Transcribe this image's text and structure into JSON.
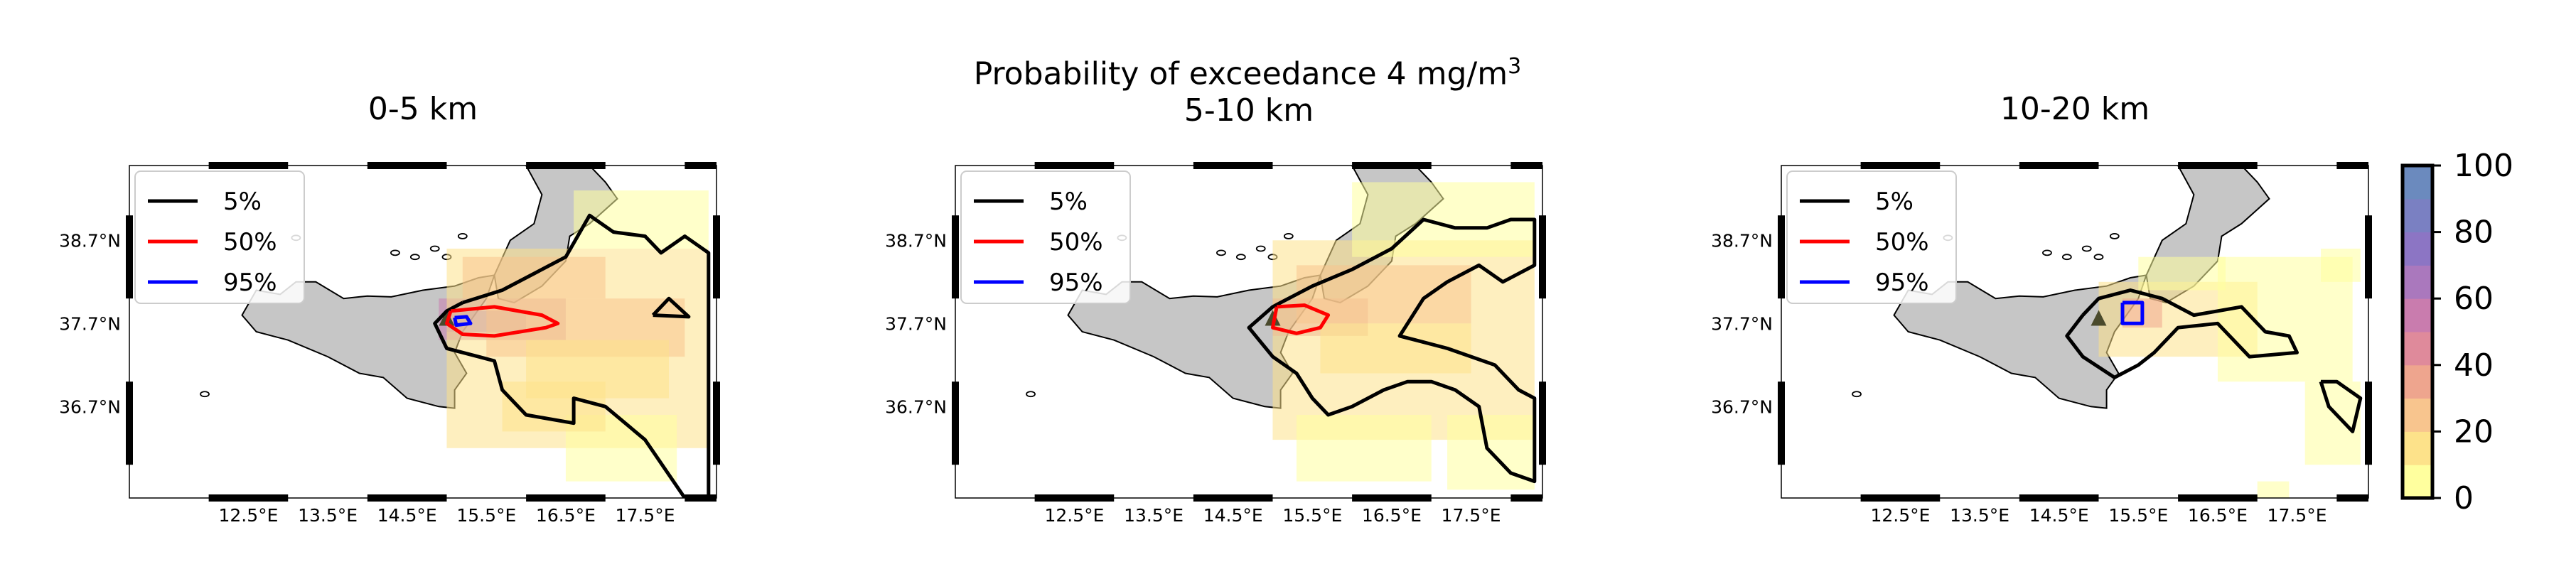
{
  "figure": {
    "title_text": "Probability of exceedance 4 mg/m",
    "title_exponent": "3"
  },
  "colors": {
    "land": "#c6c6c6",
    "contour_5": "#000000",
    "contour_50": "#ff0000",
    "contour_95": "#0000ff",
    "volcano_marker": "#4a4a2c",
    "colormap": [
      "#ffff9e",
      "#fde28a",
      "#f8c58e",
      "#eea58e",
      "#df8a9b",
      "#c97cae",
      "#aa78bd",
      "#8c75c4",
      "#7a80c2",
      "#6b8abe"
    ]
  },
  "legend": {
    "items": [
      {
        "label": "5%",
        "color": "#000000"
      },
      {
        "label": "50%",
        "color": "#ff0000"
      },
      {
        "label": "95%",
        "color": "#0000ff"
      }
    ]
  },
  "colorbar": {
    "ticks": [
      "0",
      "20",
      "40",
      "60",
      "80",
      "100"
    ],
    "range": [
      0,
      100
    ]
  },
  "chart_data": [
    {
      "type": "heatmap",
      "title": "0-5 km",
      "xlabel": "",
      "ylabel": "",
      "xlim": [
        11.0,
        18.4
      ],
      "ylim": [
        35.6,
        39.6
      ],
      "xticks": [
        12.5,
        13.5,
        14.5,
        15.5,
        16.5,
        17.5
      ],
      "xtick_labels": [
        "12.5°E",
        "13.5°E",
        "14.5°E",
        "15.5°E",
        "16.5°E",
        "17.5°E"
      ],
      "yticks": [
        36.7,
        37.7,
        38.7
      ],
      "ytick_labels": [
        "36.7°N",
        "37.7°N",
        "38.7°N"
      ],
      "grid": false,
      "legend_position": "upper-left",
      "value_range": [
        0,
        100
      ],
      "volcano": {
        "lon": 15.0,
        "lat": 37.75
      },
      "contours": [
        {
          "level": "5%",
          "points": [
            [
              15.2,
              37.95
            ],
            [
              15.7,
              38.1
            ],
            [
              16.1,
              38.3
            ],
            [
              16.5,
              38.5
            ],
            [
              16.8,
              39.0
            ],
            [
              17.1,
              38.8
            ],
            [
              17.5,
              38.75
            ],
            [
              17.7,
              38.55
            ],
            [
              18.0,
              38.75
            ],
            [
              18.3,
              38.55
            ],
            [
              18.3,
              35.6
            ],
            [
              18.0,
              35.6
            ],
            [
              17.5,
              36.3
            ],
            [
              17.0,
              36.7
            ],
            [
              16.6,
              36.8
            ],
            [
              16.6,
              36.5
            ],
            [
              16.0,
              36.6
            ],
            [
              15.7,
              36.9
            ],
            [
              15.6,
              37.25
            ],
            [
              15.4,
              37.3
            ],
            [
              15.0,
              37.4
            ],
            [
              14.85,
              37.7
            ],
            [
              15.0,
              37.85
            ],
            [
              15.2,
              37.95
            ]
          ]
        },
        {
          "level": "5%",
          "points": [
            [
              17.6,
              37.8
            ],
            [
              17.8,
              38.0
            ],
            [
              18.05,
              37.78
            ],
            [
              17.6,
              37.8
            ]
          ]
        },
        {
          "level": "50%",
          "points": [
            [
              15.05,
              37.85
            ],
            [
              15.6,
              37.9
            ],
            [
              16.2,
              37.8
            ],
            [
              16.4,
              37.7
            ],
            [
              16.25,
              37.65
            ],
            [
              15.6,
              37.55
            ],
            [
              15.2,
              37.57
            ],
            [
              15.0,
              37.7
            ],
            [
              15.05,
              37.85
            ]
          ]
        },
        {
          "level": "95%",
          "points": [
            [
              15.1,
              37.77
            ],
            [
              15.25,
              37.78
            ],
            [
              15.3,
              37.7
            ],
            [
              15.12,
              37.68
            ],
            [
              15.1,
              37.77
            ]
          ]
        }
      ],
      "cells": [
        {
          "lon": [
            14.9,
            16.5
          ],
          "lat": [
            37.5,
            38.0
          ],
          "value": 50
        },
        {
          "lon": [
            15.0,
            16.0
          ],
          "lat": [
            37.6,
            37.85
          ],
          "value": 60
        },
        {
          "lon": [
            15.0,
            18.3
          ],
          "lat": [
            36.2,
            38.6
          ],
          "value": 10
        },
        {
          "lon": [
            16.6,
            18.3
          ],
          "lat": [
            38.6,
            39.3
          ],
          "value": 5
        },
        {
          "lon": [
            15.2,
            17.0
          ],
          "lat": [
            38.0,
            38.5
          ],
          "value": 22
        },
        {
          "lon": [
            15.5,
            18.0
          ],
          "lat": [
            37.3,
            38.0
          ],
          "value": 25
        },
        {
          "lon": [
            16.0,
            17.8
          ],
          "lat": [
            36.8,
            37.5
          ],
          "value": 18
        },
        {
          "lon": [
            16.5,
            17.9
          ],
          "lat": [
            35.8,
            36.6
          ],
          "value": 8
        },
        {
          "lon": [
            15.7,
            17.0
          ],
          "lat": [
            36.4,
            37.0
          ],
          "value": 12
        }
      ]
    },
    {
      "type": "heatmap",
      "title": "5-10 km",
      "xlabel": "",
      "ylabel": "",
      "xlim": [
        11.0,
        18.4
      ],
      "ylim": [
        35.6,
        39.6
      ],
      "xticks": [
        12.5,
        13.5,
        14.5,
        15.5,
        16.5,
        17.5
      ],
      "xtick_labels": [
        "12.5°E",
        "13.5°E",
        "14.5°E",
        "15.5°E",
        "16.5°E",
        "17.5°E"
      ],
      "yticks": [
        36.7,
        37.7,
        38.7
      ],
      "ytick_labels": [
        "36.7°N",
        "37.7°N",
        "38.7°N"
      ],
      "grid": false,
      "legend_position": "upper-left",
      "value_range": [
        0,
        100
      ],
      "volcano": {
        "lon": 15.0,
        "lat": 37.75
      },
      "contours": [
        {
          "level": "5%",
          "points": [
            [
              15.1,
              37.95
            ],
            [
              15.5,
              38.15
            ],
            [
              16.0,
              38.35
            ],
            [
              16.5,
              38.6
            ],
            [
              16.9,
              38.95
            ],
            [
              17.3,
              38.85
            ],
            [
              17.7,
              38.85
            ],
            [
              18.0,
              38.95
            ],
            [
              18.3,
              38.95
            ],
            [
              18.3,
              38.4
            ],
            [
              17.9,
              38.2
            ],
            [
              17.6,
              38.4
            ],
            [
              17.2,
              38.2
            ],
            [
              16.9,
              38.0
            ],
            [
              16.6,
              37.55
            ],
            [
              16.8,
              37.5
            ],
            [
              17.2,
              37.4
            ],
            [
              17.8,
              37.2
            ],
            [
              18.1,
              36.9
            ],
            [
              18.3,
              36.8
            ],
            [
              18.3,
              35.8
            ],
            [
              18.0,
              35.9
            ],
            [
              17.7,
              36.2
            ],
            [
              17.6,
              36.7
            ],
            [
              17.3,
              36.9
            ],
            [
              17.0,
              37.0
            ],
            [
              16.7,
              37.0
            ],
            [
              16.4,
              36.9
            ],
            [
              16.0,
              36.7
            ],
            [
              15.7,
              36.6
            ],
            [
              15.5,
              36.8
            ],
            [
              15.3,
              37.1
            ],
            [
              15.0,
              37.3
            ],
            [
              14.7,
              37.65
            ],
            [
              15.0,
              37.9
            ],
            [
              15.1,
              37.95
            ]
          ]
        },
        {
          "level": "50%",
          "points": [
            [
              15.05,
              37.9
            ],
            [
              15.4,
              37.92
            ],
            [
              15.7,
              37.8
            ],
            [
              15.6,
              37.65
            ],
            [
              15.3,
              37.58
            ],
            [
              15.0,
              37.65
            ],
            [
              15.05,
              37.9
            ]
          ]
        }
      ],
      "cells": [
        {
          "lon": [
            15.0,
            16.2
          ],
          "lat": [
            37.55,
            38.0
          ],
          "value": 45
        },
        {
          "lon": [
            15.0,
            18.3
          ],
          "lat": [
            36.3,
            38.7
          ],
          "value": 10
        },
        {
          "lon": [
            16.0,
            18.3
          ],
          "lat": [
            38.5,
            39.4
          ],
          "value": 6
        },
        {
          "lon": [
            15.3,
            17.5
          ],
          "lat": [
            37.7,
            38.4
          ],
          "value": 22
        },
        {
          "lon": [
            15.6,
            17.5
          ],
          "lat": [
            37.1,
            37.7
          ],
          "value": 18
        },
        {
          "lon": [
            15.3,
            17.0
          ],
          "lat": [
            35.8,
            36.6
          ],
          "value": 6
        },
        {
          "lon": [
            17.2,
            18.3
          ],
          "lat": [
            35.7,
            36.6
          ],
          "value": 6
        }
      ]
    },
    {
      "type": "heatmap",
      "title": "10-20 km",
      "xlabel": "",
      "ylabel": "",
      "xlim": [
        11.0,
        18.4
      ],
      "ylim": [
        35.6,
        39.6
      ],
      "xticks": [
        12.5,
        13.5,
        14.5,
        15.5,
        16.5,
        17.5
      ],
      "xtick_labels": [
        "12.5°E",
        "13.5°E",
        "14.5°E",
        "15.5°E",
        "16.5°E",
        "17.5°E"
      ],
      "yticks": [
        36.7,
        37.7,
        38.7
      ],
      "ytick_labels": [
        "36.7°N",
        "37.7°N",
        "38.7°N"
      ],
      "grid": false,
      "legend_position": "upper-left",
      "value_range": [
        0,
        100
      ],
      "volcano": {
        "lon": 15.0,
        "lat": 37.75
      },
      "contours": [
        {
          "level": "5%",
          "points": [
            [
              14.8,
              37.8
            ],
            [
              15.0,
              38.0
            ],
            [
              15.4,
              38.1
            ],
            [
              15.8,
              38.0
            ],
            [
              16.2,
              37.8
            ],
            [
              16.5,
              37.85
            ],
            [
              16.8,
              37.9
            ],
            [
              17.0,
              37.7
            ],
            [
              17.1,
              37.6
            ],
            [
              17.4,
              37.55
            ],
            [
              17.5,
              37.35
            ],
            [
              16.9,
              37.3
            ],
            [
              16.5,
              37.7
            ],
            [
              16.0,
              37.65
            ],
            [
              15.7,
              37.35
            ],
            [
              15.5,
              37.2
            ],
            [
              15.2,
              37.05
            ],
            [
              14.8,
              37.3
            ],
            [
              14.6,
              37.55
            ],
            [
              14.8,
              37.8
            ]
          ]
        },
        {
          "level": "5%",
          "points": [
            [
              17.8,
              37.0
            ],
            [
              17.9,
              36.7
            ],
            [
              18.2,
              36.4
            ],
            [
              18.3,
              36.8
            ],
            [
              18.0,
              37.0
            ],
            [
              17.8,
              37.0
            ]
          ]
        },
        {
          "level": "95%",
          "points": [
            [
              15.3,
              37.95
            ],
            [
              15.55,
              37.95
            ],
            [
              15.55,
              37.7
            ],
            [
              15.3,
              37.7
            ],
            [
              15.3,
              37.95
            ]
          ]
        }
      ],
      "cells": [
        {
          "lon": [
            15.0,
            17.0
          ],
          "lat": [
            37.3,
            38.2
          ],
          "value": 14
        },
        {
          "lon": [
            15.3,
            15.8
          ],
          "lat": [
            37.65,
            38.0
          ],
          "value": 35
        },
        {
          "lon": [
            16.5,
            18.2
          ],
          "lat": [
            37.0,
            38.5
          ],
          "value": 8
        },
        {
          "lon": [
            15.5,
            16.6
          ],
          "lat": [
            38.1,
            38.5
          ],
          "value": 6
        },
        {
          "lon": [
            17.8,
            18.3
          ],
          "lat": [
            38.2,
            38.6
          ],
          "value": 6
        },
        {
          "lon": [
            17.6,
            18.3
          ],
          "lat": [
            36.0,
            37.0
          ],
          "value": 8
        },
        {
          "lon": [
            17.0,
            17.4
          ],
          "lat": [
            35.6,
            35.8
          ],
          "value": 6
        }
      ]
    }
  ]
}
